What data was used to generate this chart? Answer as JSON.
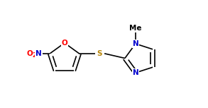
{
  "background_color": "#ffffff",
  "line_color": "#000000",
  "atom_colors": {
    "O": "#ff0000",
    "N": "#0000cd",
    "S": "#b8860b"
  },
  "bond_width": 1.2,
  "figsize": [
    2.93,
    1.53
  ],
  "dpi": 100,
  "xlim": [
    0,
    9.5
  ],
  "ylim": [
    0.5,
    5.5
  ]
}
